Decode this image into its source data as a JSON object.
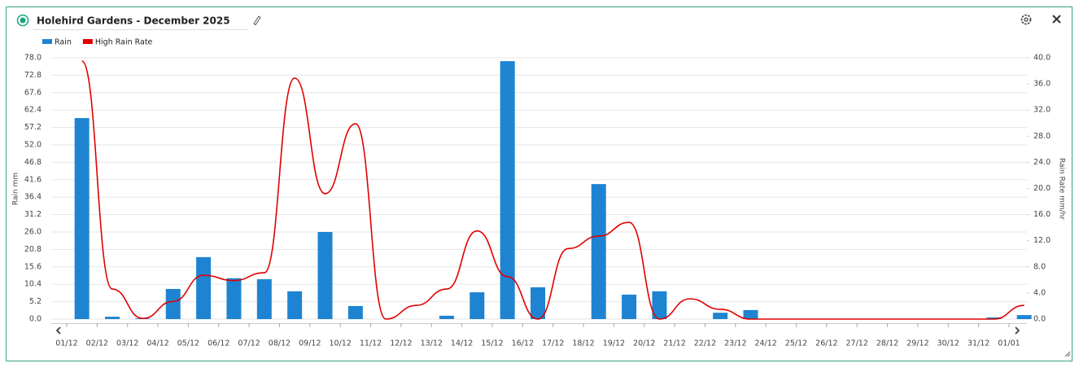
{
  "header": {
    "title": "Holehird Gardens - December 2025"
  },
  "chart_data": {
    "type": "bar-line",
    "categories": [
      "01/12",
      "02/12",
      "03/12",
      "04/12",
      "05/12",
      "06/12",
      "07/12",
      "08/12",
      "09/12",
      "10/12",
      "11/12",
      "12/12",
      "13/12",
      "14/12",
      "15/12",
      "16/12",
      "17/12",
      "18/12",
      "19/12",
      "20/12",
      "21/12",
      "22/12",
      "23/12",
      "24/12",
      "25/12",
      "26/12",
      "27/12",
      "28/12",
      "29/12",
      "30/12",
      "31/12",
      "01/01"
    ],
    "series": [
      {
        "name": "Rain",
        "type": "bar",
        "color": "#1e84d2",
        "values": [
          60.0,
          0.7,
          0.2,
          9.0,
          18.5,
          12.2,
          11.9,
          8.3,
          26.0,
          3.9,
          0,
          0,
          1.0,
          8.0,
          77.0,
          9.5,
          0,
          40.3,
          7.3,
          8.3,
          0,
          1.9,
          2.7,
          0,
          0,
          0,
          0,
          0,
          0,
          0,
          0.5,
          1.2
        ]
      },
      {
        "name": "High Rain Rate",
        "type": "line",
        "axis": "y2",
        "color": "#e00000",
        "values": [
          39.5,
          4.6,
          0.1,
          2.7,
          6.7,
          5.9,
          7.1,
          36.9,
          19.2,
          29.9,
          0,
          2.1,
          4.6,
          13.5,
          6.5,
          0,
          10.8,
          12.7,
          14.8,
          0,
          3.1,
          1.5,
          0,
          0,
          0,
          0,
          0,
          0,
          0,
          0,
          0,
          2.1
        ]
      }
    ],
    "ylabel": "Rain mm",
    "y2label": "Rain Rate mm/hr",
    "ylim": [
      0,
      78
    ],
    "yticks": [
      {
        "value": 0,
        "label": "0.0"
      },
      5.2,
      10.4,
      15.6,
      20.8,
      {
        "value": 26,
        "label": "26.0"
      },
      31.2,
      36.4,
      41.6,
      46.8,
      {
        "value": 52,
        "label": "52.0"
      },
      57.2,
      62.4,
      67.6,
      72.8,
      {
        "value": 78,
        "label": "78.0"
      }
    ],
    "y2lim": [
      0,
      40
    ],
    "y2ticks": [
      {
        "value": 0,
        "label": "0.0"
      },
      {
        "value": 4,
        "label": "4.0"
      },
      {
        "value": 8,
        "label": "8.0"
      },
      {
        "value": 12,
        "label": "12.0"
      },
      {
        "value": 16,
        "label": "16.0"
      },
      {
        "value": 20,
        "label": "20.0"
      },
      {
        "value": 24,
        "label": "24.0"
      },
      {
        "value": 28,
        "label": "28.0"
      },
      {
        "value": 32,
        "label": "32.0"
      },
      {
        "value": 36,
        "label": "36.0"
      },
      {
        "value": 40,
        "label": "40.0"
      }
    ],
    "grid": true,
    "legend": "top-left"
  }
}
